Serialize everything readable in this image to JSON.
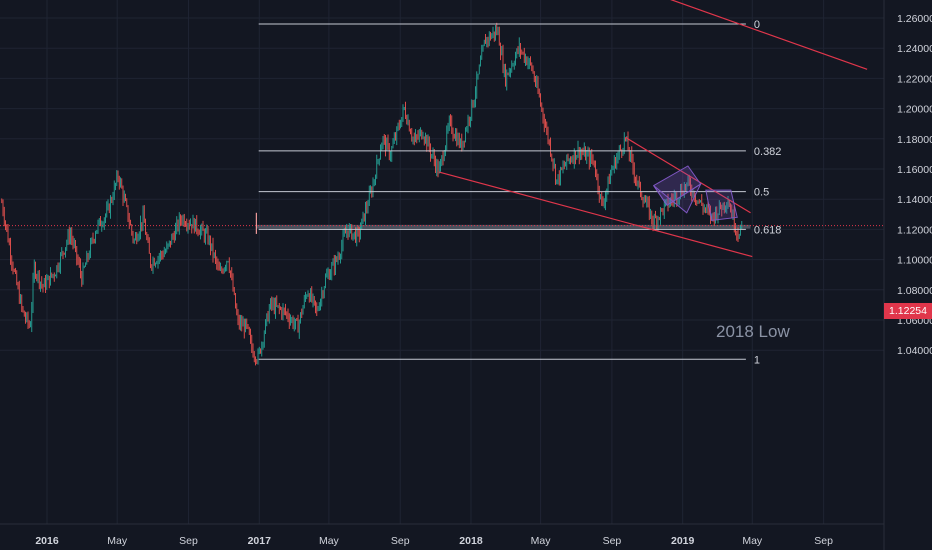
{
  "chart_data": {
    "type": "candlestick",
    "title": "",
    "xlabel": "",
    "ylabel": "",
    "grid": true,
    "y_axis_position": "right",
    "ylim": [
      1.026,
      1.272
    ],
    "y_ticks": [
      "1.26000",
      "1.24000",
      "1.22000",
      "1.20000",
      "1.18000",
      "1.16000",
      "1.14000",
      "1.12000",
      "1.10000",
      "1.08000",
      "1.06000",
      "1.04000"
    ],
    "x_ticks": [
      {
        "label": "2016",
        "date": "2016-01-01",
        "bold": true
      },
      {
        "label": "May",
        "date": "2016-05-01",
        "bold": false
      },
      {
        "label": "Sep",
        "date": "2016-09-01",
        "bold": false
      },
      {
        "label": "2017",
        "date": "2017-01-01",
        "bold": true
      },
      {
        "label": "May",
        "date": "2017-05-01",
        "bold": false
      },
      {
        "label": "Sep",
        "date": "2017-09-01",
        "bold": false
      },
      {
        "label": "2018",
        "date": "2018-01-01",
        "bold": true
      },
      {
        "label": "May",
        "date": "2018-05-01",
        "bold": false
      },
      {
        "label": "Sep",
        "date": "2018-09-01",
        "bold": false
      },
      {
        "label": "2019",
        "date": "2019-01-01",
        "bold": true
      },
      {
        "label": "May",
        "date": "2019-05-01",
        "bold": false
      },
      {
        "label": "Sep",
        "date": "2019-09-01",
        "bold": false
      }
    ],
    "current_price": {
      "value": 1.12254,
      "label": "1.12254"
    },
    "price_path": [
      [
        "2015-10-15",
        1.138
      ],
      [
        "2015-11-05",
        1.092
      ],
      [
        "2015-11-20",
        1.065
      ],
      [
        "2015-12-03",
        1.055
      ],
      [
        "2015-12-10",
        1.095
      ],
      [
        "2015-12-25",
        1.082
      ],
      [
        "2016-01-15",
        1.092
      ],
      [
        "2016-02-10",
        1.118
      ],
      [
        "2016-03-01",
        1.088
      ],
      [
        "2016-03-25",
        1.12
      ],
      [
        "2016-04-15",
        1.132
      ],
      [
        "2016-05-03",
        1.156
      ],
      [
        "2016-05-30",
        1.112
      ],
      [
        "2016-06-15",
        1.128
      ],
      [
        "2016-06-27",
        1.098
      ],
      [
        "2016-07-25",
        1.106
      ],
      [
        "2016-08-20",
        1.128
      ],
      [
        "2016-09-15",
        1.122
      ],
      [
        "2016-10-05",
        1.114
      ],
      [
        "2016-10-25",
        1.09
      ],
      [
        "2016-11-08",
        1.102
      ],
      [
        "2016-11-25",
        1.058
      ],
      [
        "2016-12-10",
        1.055
      ],
      [
        "2016-12-20",
        1.04
      ],
      [
        "2016-12-30",
        1.035
      ],
      [
        "2017-01-20",
        1.07
      ],
      [
        "2017-02-15",
        1.065
      ],
      [
        "2017-03-08",
        1.055
      ],
      [
        "2017-03-25",
        1.08
      ],
      [
        "2017-04-10",
        1.065
      ],
      [
        "2017-04-25",
        1.087
      ],
      [
        "2017-05-15",
        1.1
      ],
      [
        "2017-06-01",
        1.12
      ],
      [
        "2017-06-20",
        1.115
      ],
      [
        "2017-07-15",
        1.148
      ],
      [
        "2017-08-01",
        1.18
      ],
      [
        "2017-08-15",
        1.17
      ],
      [
        "2017-09-08",
        1.2
      ],
      [
        "2017-09-25",
        1.178
      ],
      [
        "2017-10-10",
        1.185
      ],
      [
        "2017-10-27",
        1.168
      ],
      [
        "2017-11-07",
        1.158
      ],
      [
        "2017-11-25",
        1.19
      ],
      [
        "2017-12-15",
        1.175
      ],
      [
        "2018-01-05",
        1.205
      ],
      [
        "2018-01-25",
        1.245
      ],
      [
        "2018-02-16",
        1.252
      ],
      [
        "2018-03-01",
        1.22
      ],
      [
        "2018-03-25",
        1.24
      ],
      [
        "2018-04-15",
        1.228
      ],
      [
        "2018-04-30",
        1.205
      ],
      [
        "2018-05-20",
        1.17
      ],
      [
        "2018-05-29",
        1.152
      ],
      [
        "2018-06-15",
        1.165
      ],
      [
        "2018-07-05",
        1.172
      ],
      [
        "2018-08-01",
        1.165
      ],
      [
        "2018-08-15",
        1.135
      ],
      [
        "2018-09-01",
        1.16
      ],
      [
        "2018-09-24",
        1.18
      ],
      [
        "2018-10-15",
        1.15
      ],
      [
        "2018-11-12",
        1.125
      ],
      [
        "2018-12-01",
        1.135
      ],
      [
        "2019-01-10",
        1.15
      ],
      [
        "2019-01-30",
        1.138
      ],
      [
        "2019-02-20",
        1.128
      ],
      [
        "2019-03-20",
        1.14
      ],
      [
        "2019-04-05",
        1.118
      ],
      [
        "2019-04-15",
        1.122
      ]
    ],
    "fib_levels": [
      {
        "label": "0",
        "value": 1.256
      },
      {
        "label": "0.382",
        "value": 1.172
      },
      {
        "label": "0.5",
        "value": 1.145
      },
      {
        "label": "0.618",
        "value": 1.12
      },
      {
        "label": "1",
        "value": 1.034
      }
    ],
    "fib_range": {
      "start": "2016-12-31",
      "end": "2019-04-20"
    },
    "channel_lines": [
      {
        "from": [
          "2017-11-07",
          1.158
        ],
        "to": [
          "2019-05-01",
          1.102
        ]
      },
      {
        "from": [
          "2018-09-24",
          1.181
        ],
        "to": [
          "2019-04-28",
          1.131
        ]
      },
      {
        "from": [
          "2018-06-20",
          1.296
        ],
        "to": [
          "2019-11-15",
          1.226
        ]
      }
    ],
    "support_band": {
      "from": "2016-12-27",
      "to": "2019-04-28",
      "low": 1.1205,
      "high": 1.123
    },
    "marker": {
      "date": "2016-12-27",
      "high": 1.131,
      "low": 1.117
    },
    "annotation": {
      "text": "2018 Low"
    },
    "colors": {
      "background": "#131722",
      "grid": "#1f2433",
      "bull": "#26a69a",
      "bear": "#ef5350",
      "fib": "#c5c9d3",
      "trend": "#e0364b",
      "pattern": "#7e57c2",
      "price_line": "#e0364b",
      "axis_text": "#d1d4dc"
    }
  }
}
